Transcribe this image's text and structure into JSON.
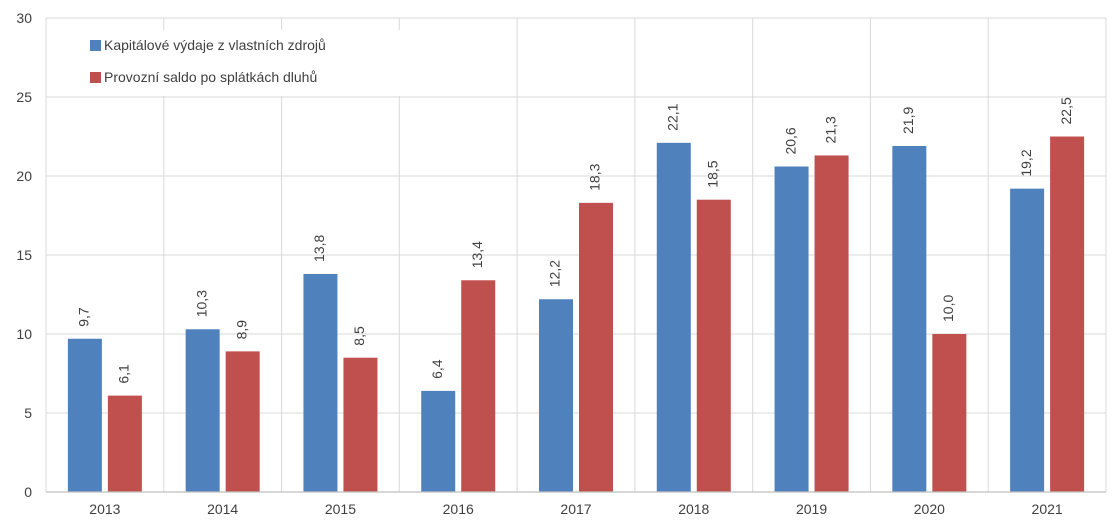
{
  "chart_data": {
    "type": "bar",
    "title": "",
    "xlabel": "",
    "ylabel": "",
    "categories": [
      "2013",
      "2014",
      "2015",
      "2016",
      "2017",
      "2018",
      "2019",
      "2020",
      "2021"
    ],
    "series": [
      {
        "name": "Kapitálové výdaje z vlastních zdrojů",
        "values": [
          9.7,
          10.3,
          13.8,
          6.4,
          12.2,
          22.1,
          20.6,
          21.9,
          19.2
        ],
        "labels": [
          "9,7",
          "10,3",
          "13,8",
          "6,4",
          "12,2",
          "22,1",
          "20,6",
          "21,9",
          "19,2"
        ],
        "color": "#4f81bd"
      },
      {
        "name": "Provozní saldo po splátkách dluhů",
        "values": [
          6.1,
          8.9,
          8.5,
          13.4,
          18.3,
          18.5,
          21.3,
          10.0,
          22.5
        ],
        "labels": [
          "6,1",
          "8,9",
          "8,5",
          "13,4",
          "18,3",
          "18,5",
          "21,3",
          "10,0",
          "22,5"
        ],
        "color": "#c0504d"
      }
    ],
    "ylim": [
      0,
      30
    ],
    "yticks": [
      0,
      5,
      10,
      15,
      20,
      25,
      30
    ],
    "grid": true,
    "legend": "top-left"
  },
  "colors": {
    "grid": "#d9d9d9",
    "axis": "#bfbfbf",
    "text": "#404040"
  }
}
